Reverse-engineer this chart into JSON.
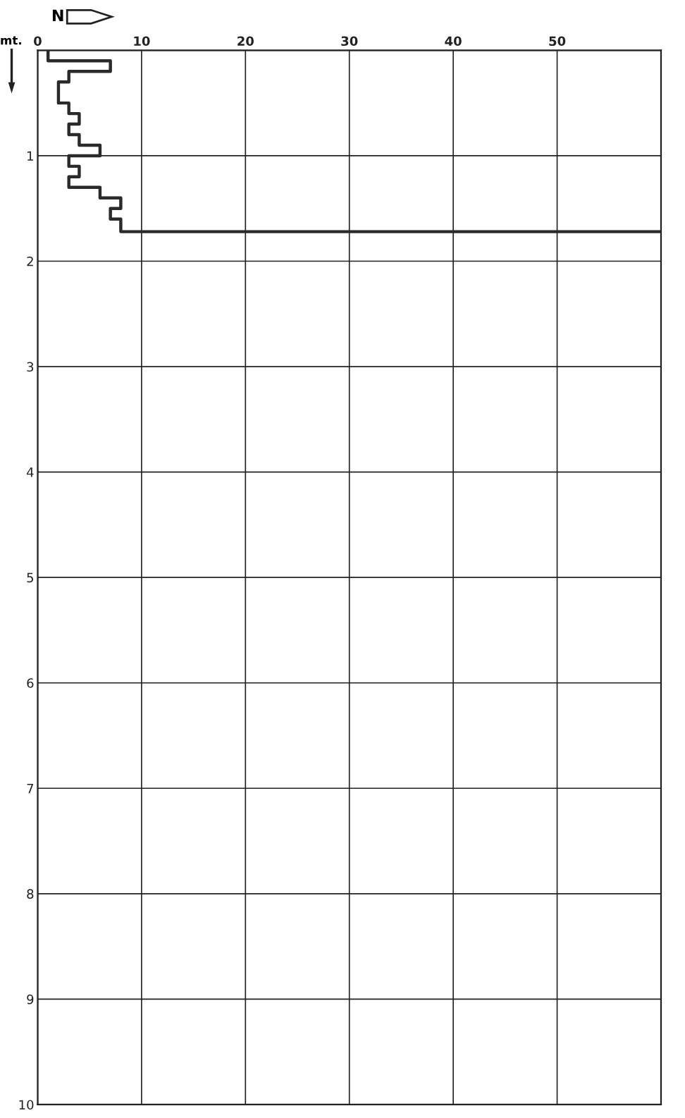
{
  "chart_data": {
    "type": "line",
    "xlabel": "N",
    "ylabel": "mt.",
    "series": [
      {
        "color": "#2a2a2a",
        "x": [
          1,
          1,
          7,
          7,
          3,
          3,
          2,
          2,
          3,
          3,
          4,
          4,
          3,
          3,
          4,
          4,
          6,
          6,
          3,
          3,
          4,
          4,
          3,
          3,
          6,
          6,
          8,
          8,
          7,
          7,
          8,
          8,
          60
        ],
        "values": [
          0,
          0.1,
          0.1,
          0.2,
          0.2,
          0.3,
          0.3,
          0.5,
          0.5,
          0.6,
          0.6,
          0.7,
          0.7,
          0.8,
          0.8,
          0.9,
          0.9,
          1.0,
          1.0,
          1.1,
          1.1,
          1.2,
          1.2,
          1.3,
          1.3,
          1.4,
          1.4,
          1.5,
          1.5,
          1.6,
          1.6,
          1.72,
          1.72
        ]
      }
    ],
    "xlim": [
      0,
      60
    ],
    "xticks": [
      0,
      10,
      20,
      30,
      40,
      50
    ],
    "ylim": [
      10,
      0
    ],
    "yticks": [
      {
        "value": 0,
        "label": null
      },
      1,
      2,
      3,
      4,
      5,
      6,
      7,
      8,
      9,
      10
    ],
    "grid": true,
    "marker": "none",
    "line_style": "solid"
  }
}
